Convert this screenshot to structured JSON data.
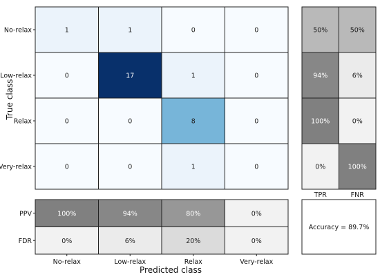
{
  "chart_data": {
    "type": "heatmap",
    "xlabel": "Predicted class",
    "ylabel": "True class",
    "classes": [
      "No-relax",
      "Low-relax",
      "Relax",
      "Very-relax"
    ],
    "matrix": [
      [
        1,
        1,
        0,
        0
      ],
      [
        0,
        17,
        1,
        0
      ],
      [
        0,
        0,
        8,
        0
      ],
      [
        0,
        0,
        1,
        0
      ]
    ],
    "color_max": 17,
    "row_summary": {
      "labels": [
        "TPR",
        "FNR"
      ],
      "values": [
        [
          "50%",
          "50%"
        ],
        [
          "94%",
          "6%"
        ],
        [
          "100%",
          "0%"
        ],
        [
          "0%",
          "100%"
        ]
      ],
      "fractions": [
        [
          0.5,
          0.5
        ],
        [
          0.94,
          0.06
        ],
        [
          1.0,
          0.0
        ],
        [
          0.0,
          1.0
        ]
      ]
    },
    "col_summary": {
      "labels": [
        "PPV",
        "FDR"
      ],
      "values": [
        [
          "100%",
          "94%",
          "80%",
          "0%"
        ],
        [
          "0%",
          "6%",
          "20%",
          "0%"
        ]
      ],
      "fractions": [
        [
          1.0,
          0.94,
          0.8,
          0.0
        ],
        [
          0.0,
          0.06,
          0.2,
          0.0
        ]
      ]
    },
    "accuracy_text": "Accuracy = 89.7%"
  }
}
